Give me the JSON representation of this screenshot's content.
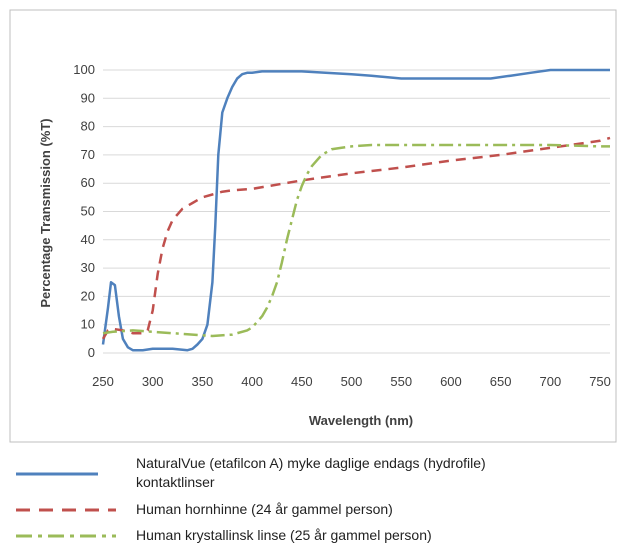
{
  "chart_data": {
    "type": "line",
    "title": "",
    "xlabel": "Wavelength (nm)",
    "ylabel": "Percentage Transmission (%T)",
    "xlim": [
      250,
      760
    ],
    "ylim": [
      0,
      100
    ],
    "xticks": [
      250,
      300,
      350,
      400,
      450,
      500,
      550,
      600,
      650,
      700,
      750
    ],
    "yticks": [
      0,
      10,
      20,
      30,
      40,
      50,
      60,
      70,
      80,
      90,
      100
    ],
    "grid": "horizontal",
    "legend_position": "bottom",
    "series": [
      {
        "name": "NaturalVue (etafilcon A) myke daglige endags (hydrofile) kontaktlinser",
        "color": "#4f81bd",
        "style": "solid",
        "x": [
          250,
          255,
          258,
          262,
          266,
          270,
          275,
          280,
          290,
          300,
          320,
          335,
          340,
          345,
          350,
          355,
          360,
          363,
          366,
          370,
          375,
          380,
          385,
          390,
          395,
          400,
          410,
          420,
          450,
          500,
          520,
          550,
          580,
          600,
          620,
          640,
          660,
          680,
          700,
          730,
          760
        ],
        "y": [
          3,
          16,
          25,
          24,
          13,
          5,
          2,
          1,
          1,
          1.5,
          1.5,
          1,
          1.5,
          3,
          5,
          10,
          25,
          45,
          70,
          85,
          90,
          94,
          97,
          98.5,
          99,
          99,
          99.5,
          99.5,
          99.5,
          98.5,
          98,
          97,
          97,
          97,
          97,
          97,
          98,
          99,
          100,
          100,
          100
        ]
      },
      {
        "name": "Human hornhinne (24 år gammel person)",
        "color": "#c0504d",
        "style": "dashed",
        "x": [
          250,
          255,
          260,
          270,
          280,
          290,
          295,
          300,
          305,
          310,
          315,
          320,
          325,
          330,
          340,
          350,
          360,
          370,
          380,
          400,
          450,
          500,
          550,
          600,
          650,
          700,
          750,
          760
        ],
        "y": [
          5,
          8,
          8.5,
          8,
          7,
          7,
          8,
          15,
          28,
          37,
          43,
          47,
          49,
          51,
          53,
          55,
          56,
          57,
          57.5,
          58,
          61,
          63.5,
          65.5,
          68,
          70,
          72.5,
          75,
          76
        ]
      },
      {
        "name": "Human krystallinsk linse (25 år gammel person)",
        "color": "#9bbb59",
        "style": "dash-dot",
        "x": [
          250,
          260,
          280,
          300,
          320,
          340,
          360,
          380,
          395,
          400,
          405,
          410,
          415,
          420,
          425,
          430,
          435,
          440,
          445,
          450,
          455,
          460,
          465,
          470,
          475,
          480,
          490,
          500,
          520,
          550,
          600,
          650,
          700,
          750,
          760
        ],
        "y": [
          7,
          7.5,
          8,
          7.5,
          7,
          6.5,
          6,
          6.5,
          8,
          9,
          11,
          13,
          16,
          20,
          25,
          32,
          40,
          47,
          54,
          59,
          63,
          66,
          68,
          70,
          71,
          72,
          72.5,
          73,
          73.5,
          73.5,
          73.5,
          73.5,
          73.5,
          73,
          73
        ]
      }
    ]
  }
}
